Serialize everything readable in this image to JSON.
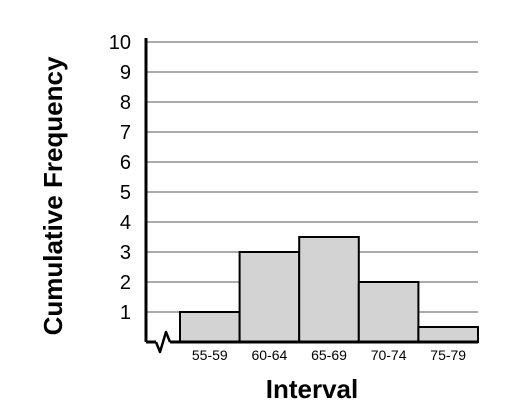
{
  "chart_data": {
    "type": "bar",
    "categories": [
      "55-59",
      "60-64",
      "65-69",
      "70-74",
      "75-79"
    ],
    "values": [
      1,
      3,
      3.5,
      2,
      0.5
    ],
    "xlabel": "Interval",
    "ylabel": "Cumulative Frequency",
    "ylim": [
      0,
      10
    ],
    "yticks": [
      "1",
      "2",
      "3",
      "4",
      "5",
      "6",
      "7",
      "8",
      "9",
      "10"
    ],
    "grid": true,
    "axis_break": true,
    "colors": {
      "bar_fill": "#d3d3d3",
      "stroke": "#000000",
      "grid": "#555555"
    }
  }
}
